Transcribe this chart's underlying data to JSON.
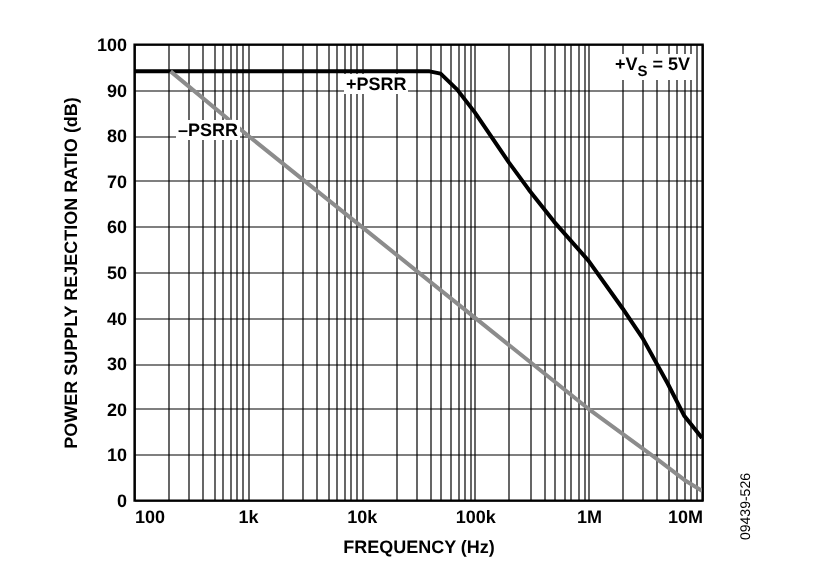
{
  "chart_data": {
    "type": "line",
    "xlabel": "FREQUENCY (Hz)",
    "ylabel": "POWER SUPPLY REJECTION RATIO (dB)",
    "log": "x",
    "grid": true,
    "line_style": "solid",
    "xlim": [
      100,
      10000000
    ],
    "ylim": [
      0,
      100
    ],
    "xticks": [
      100,
      {
        "value": 200,
        "label": null
      },
      {
        "value": 300,
        "label": null
      },
      {
        "value": 400,
        "label": null
      },
      {
        "value": 500,
        "label": null
      },
      {
        "value": 600,
        "label": null
      },
      {
        "value": 700,
        "label": null
      },
      {
        "value": 800,
        "label": null
      },
      {
        "value": 900,
        "label": null
      },
      {
        "value": 1000,
        "label": "1k"
      },
      {
        "value": 2000,
        "label": null
      },
      {
        "value": 3000,
        "label": null
      },
      {
        "value": 4000,
        "label": null
      },
      {
        "value": 5000,
        "label": null
      },
      {
        "value": 6000,
        "label": null
      },
      {
        "value": 7000,
        "label": null
      },
      {
        "value": 8000,
        "label": null
      },
      {
        "value": 9000,
        "label": null
      },
      {
        "value": 10000,
        "label": "10k"
      },
      {
        "value": 20000,
        "label": null
      },
      {
        "value": 30000,
        "label": null
      },
      {
        "value": 40000,
        "label": null
      },
      {
        "value": 50000,
        "label": null
      },
      {
        "value": 60000,
        "label": null
      },
      {
        "value": 70000,
        "label": null
      },
      {
        "value": 80000,
        "label": null
      },
      {
        "value": 90000,
        "label": null
      },
      {
        "value": 100000,
        "label": "100k"
      },
      {
        "value": 200000,
        "label": null
      },
      {
        "value": 300000,
        "label": null
      },
      {
        "value": 400000,
        "label": null
      },
      {
        "value": 500000,
        "label": null
      },
      {
        "value": 600000,
        "label": null
      },
      {
        "value": 700000,
        "label": null
      },
      {
        "value": 800000,
        "label": null
      },
      {
        "value": 900000,
        "label": null
      },
      {
        "value": 1000000,
        "label": "1M"
      },
      {
        "value": 2000000,
        "label": null
      },
      {
        "value": 3000000,
        "label": null
      },
      {
        "value": 4000000,
        "label": null
      },
      {
        "value": 5000000,
        "label": null
      },
      {
        "value": 6000000,
        "label": null
      },
      {
        "value": 7000000,
        "label": null
      },
      {
        "value": 8000000,
        "label": null
      },
      {
        "value": 9000000,
        "label": null
      },
      {
        "value": 10000000,
        "label": "10M"
      }
    ],
    "yticks": [
      0,
      10,
      20,
      30,
      40,
      50,
      60,
      70,
      80,
      90,
      100
    ],
    "series": [
      {
        "color": "#000000",
        "x": [
          100,
          40000,
          50000,
          70000,
          100000,
          200000,
          300000,
          500000,
          1000000,
          2000000,
          3000000,
          5000000,
          7000000,
          10000000
        ],
        "values": [
          94,
          94,
          93.5,
          90,
          85,
          74,
          68,
          61,
          52.5,
          42,
          35.5,
          25.5,
          18.4,
          13.6
        ]
      },
      {
        "color": "#8c8c8c",
        "x": [
          210,
          1000,
          10000,
          100000,
          1000000,
          4000000,
          7000000,
          10000000
        ],
        "values": [
          94,
          80,
          60,
          40,
          20,
          9,
          4.4,
          2
        ]
      }
    ],
    "annotations": [
      "+PSRR",
      "–PSRR",
      "+V$_{S}$ = 5V",
      "09439-526"
    ]
  }
}
